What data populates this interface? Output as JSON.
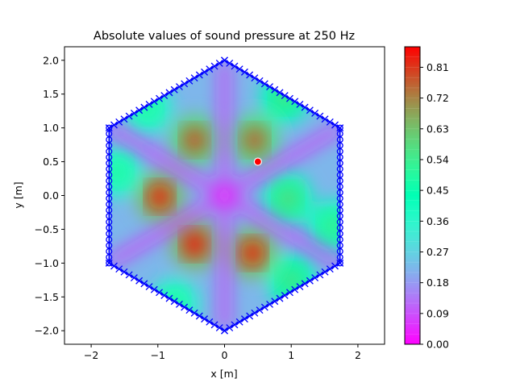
{
  "chart_data": {
    "type": "heatmap",
    "title": "Absolute values of sound pressure at 250 Hz",
    "xlabel": "x [m]",
    "ylabel": "y [m]",
    "xlim": [
      -2.4,
      2.4
    ],
    "ylim": [
      -2.2,
      2.2
    ],
    "xticks": [
      -2,
      -1,
      0,
      1,
      2
    ],
    "xtick_labels": [
      "−2",
      "−1",
      "0",
      "1",
      "2"
    ],
    "yticks": [
      -2.0,
      -1.5,
      -1.0,
      -0.5,
      0.0,
      0.5,
      1.0,
      1.5,
      2.0
    ],
    "ytick_labels": [
      "−2.0",
      "−1.5",
      "−1.0",
      "−0.5",
      "0.0",
      "0.5",
      "1.0",
      "1.5",
      "2.0"
    ],
    "domain": {
      "shape": "hexagon",
      "vertices": [
        [
          0,
          2
        ],
        [
          1.732,
          1
        ],
        [
          1.732,
          -1
        ],
        [
          0,
          -2
        ],
        [
          -1.732,
          -1
        ],
        [
          -1.732,
          1
        ]
      ],
      "boundary_markers": {
        "color": "#0000ff",
        "sides": [
          {
            "from": [
              0,
              2
            ],
            "to": [
              1.732,
              1
            ],
            "marker": "x"
          },
          {
            "from": [
              1.732,
              1
            ],
            "to": [
              1.732,
              -1
            ],
            "marker": "o"
          },
          {
            "from": [
              1.732,
              -1
            ],
            "to": [
              0,
              -2
            ],
            "marker": "x"
          },
          {
            "from": [
              0,
              -2
            ],
            "to": [
              -1.732,
              -1
            ],
            "marker": "x"
          },
          {
            "from": [
              -1.732,
              -1
            ],
            "to": [
              -1.732,
              1
            ],
            "marker": "o"
          },
          {
            "from": [
              -1.732,
              1
            ],
            "to": [
              0,
              2
            ],
            "marker": "x"
          }
        ]
      }
    },
    "source": {
      "x": 0.5,
      "y": 0.5,
      "color": "#ff0000"
    },
    "hotspots": [
      {
        "x": -0.45,
        "y": 0.82,
        "value": 0.8
      },
      {
        "x": 0.45,
        "y": 0.82,
        "value": 0.78
      },
      {
        "x": -0.97,
        "y": -0.02,
        "value": 0.86
      },
      {
        "x": 0.95,
        "y": -0.05,
        "value": 0.6
      },
      {
        "x": -0.45,
        "y": -0.72,
        "value": 0.87
      },
      {
        "x": 0.42,
        "y": -0.85,
        "value": 0.86
      },
      {
        "x": 0.9,
        "y": 1.45,
        "value": 0.58
      },
      {
        "x": -1.15,
        "y": 1.3,
        "value": 0.5
      },
      {
        "x": -1.6,
        "y": 0.35,
        "value": 0.5
      },
      {
        "x": 1.62,
        "y": -0.45,
        "value": 0.55
      },
      {
        "x": -0.75,
        "y": -1.6,
        "value": 0.5
      },
      {
        "x": 1.0,
        "y": -1.25,
        "value": 0.58
      }
    ],
    "colorbar": {
      "colormap": "rainbow",
      "min": 0.0,
      "max": 0.87,
      "ticks": [
        0.0,
        0.09,
        0.18,
        0.27,
        0.36,
        0.45,
        0.54,
        0.63,
        0.72,
        0.81
      ],
      "tick_labels": [
        "0.00",
        "0.09",
        "0.18",
        "0.27",
        "0.36",
        "0.45",
        "0.54",
        "0.63",
        "0.72",
        "0.81"
      ]
    }
  }
}
